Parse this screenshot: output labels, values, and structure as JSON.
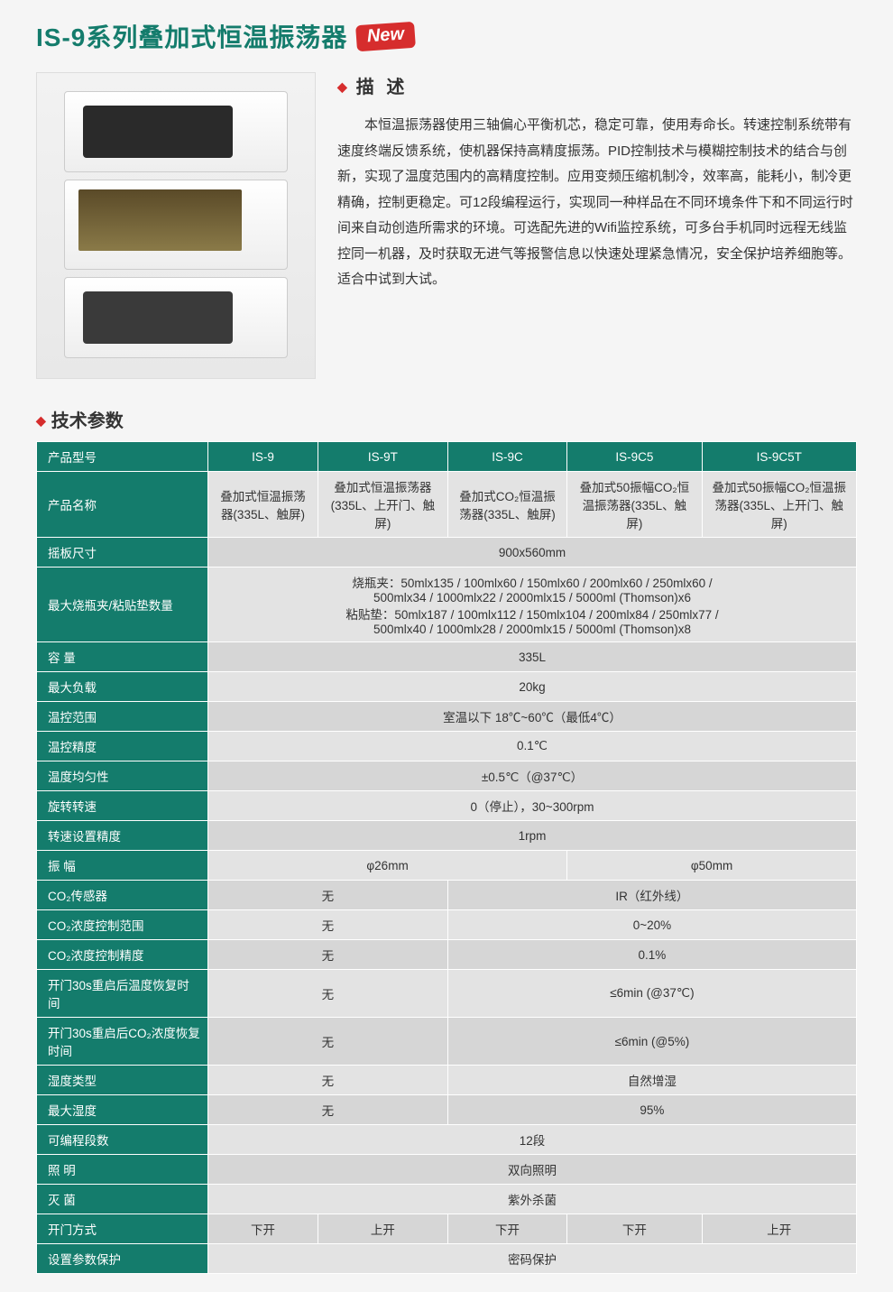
{
  "colors": {
    "brand": "#147c6c",
    "accent": "#d62d2d",
    "row_even": "#e3e3e3",
    "row_odd": "#d6d6d6",
    "text": "#333333",
    "white": "#ffffff"
  },
  "header": {
    "title": "IS-9系列叠加式恒温振荡器",
    "new_badge": "New"
  },
  "description": {
    "heading": "描 述",
    "body": "本恒温振荡器使用三轴偏心平衡机芯，稳定可靠，使用寿命长。转速控制系统带有速度终端反馈系统，使机器保持高精度振荡。PID控制技术与模糊控制技术的结合与创新，实现了温度范围内的高精度控制。应用变频压缩机制冷，效率高，能耗小，制冷更精确，控制更稳定。可12段编程运行，实现同一种样品在不同环境条件下和不同运行时间来自动创造所需求的环境。可选配先进的Wifi监控系统，可多台手机同时远程无线监控同一机器，及时获取无进气等报警信息以快速处理紧急情况，安全保护培养细胞等。适合中试到大试。"
  },
  "spec": {
    "heading": "技术参数",
    "models": [
      "IS-9",
      "IS-9T",
      "IS-9C",
      "IS-9C5",
      "IS-9C5T"
    ],
    "labels": {
      "model": "产品型号",
      "name": "产品名称",
      "platform": "摇板尺寸",
      "maxholder": "最大烧瓶夹/粘贴垫数量",
      "capacity": "容 量",
      "maxload": "最大负载",
      "temprange": "温控范围",
      "tempacc": "温控精度",
      "tempuni": "温度均匀性",
      "speed": "旋转转速",
      "speedacc": "转速设置精度",
      "amplitude": "振 幅",
      "co2sensor": "CO₂传感器",
      "co2range": "CO₂浓度控制范围",
      "co2acc": "CO₂浓度控制精度",
      "temprecover": "开门30s重启后温度恢复时间",
      "co2recover": "开门30s重启后CO₂浓度恢复时间",
      "humtype": "湿度类型",
      "maxhum": "最大湿度",
      "segments": "可编程段数",
      "light": "照 明",
      "sterilize": "灭 菌",
      "door": "开门方式",
      "paramprotect": "设置参数保护"
    },
    "rows": {
      "name": [
        "叠加式恒温振荡器(335L、触屏)",
        "叠加式恒温振荡器(335L、上开门、触屏)",
        "叠加式CO₂恒温振荡器(335L、触屏)",
        "叠加式50振幅CO₂恒温振荡器(335L、触屏)",
        "叠加式50振幅CO₂恒温振荡器(335L、上开门、触屏)"
      ],
      "platform": "900x560mm",
      "maxholder_l1": "烧瓶夹：50mlx135 / 100mlx60 / 150mlx60 / 200mlx60 / 250mlx60 /",
      "maxholder_l2": "500mlx34 / 1000mlx22 / 2000mlx15 / 5000ml (Thomson)x6",
      "maxholder_l3": "粘贴垫：50mlx187 / 100mlx112 / 150mlx104 / 200mlx84 / 250mlx77 /",
      "maxholder_l4": "500mlx40 / 1000mlx28 / 2000mlx15 / 5000ml (Thomson)x8",
      "capacity": "335L",
      "maxload": "20kg",
      "temprange": "室温以下 18℃~60℃（最低4℃）",
      "tempacc": "0.1℃",
      "tempuni": "±0.5℃（@37℃）",
      "speed": "0（停止），30~300rpm",
      "speedacc": "1rpm",
      "amplitude": [
        "φ26mm",
        "φ50mm"
      ],
      "co2sensor": [
        "无",
        "IR（红外线）"
      ],
      "co2range": [
        "无",
        "0~20%"
      ],
      "co2acc": [
        "无",
        "0.1%"
      ],
      "temprecover": [
        "无",
        "≤6min (@37℃)"
      ],
      "co2recover": [
        "无",
        "≤6min (@5%)"
      ],
      "humtype": [
        "无",
        "自然增湿"
      ],
      "maxhum": [
        "无",
        "95%"
      ],
      "segments": "12段",
      "light": "双向照明",
      "sterilize": "紫外杀菌",
      "door": [
        "下开",
        "上开",
        "下开",
        "下开",
        "上开"
      ],
      "paramprotect": "密码保护"
    }
  }
}
